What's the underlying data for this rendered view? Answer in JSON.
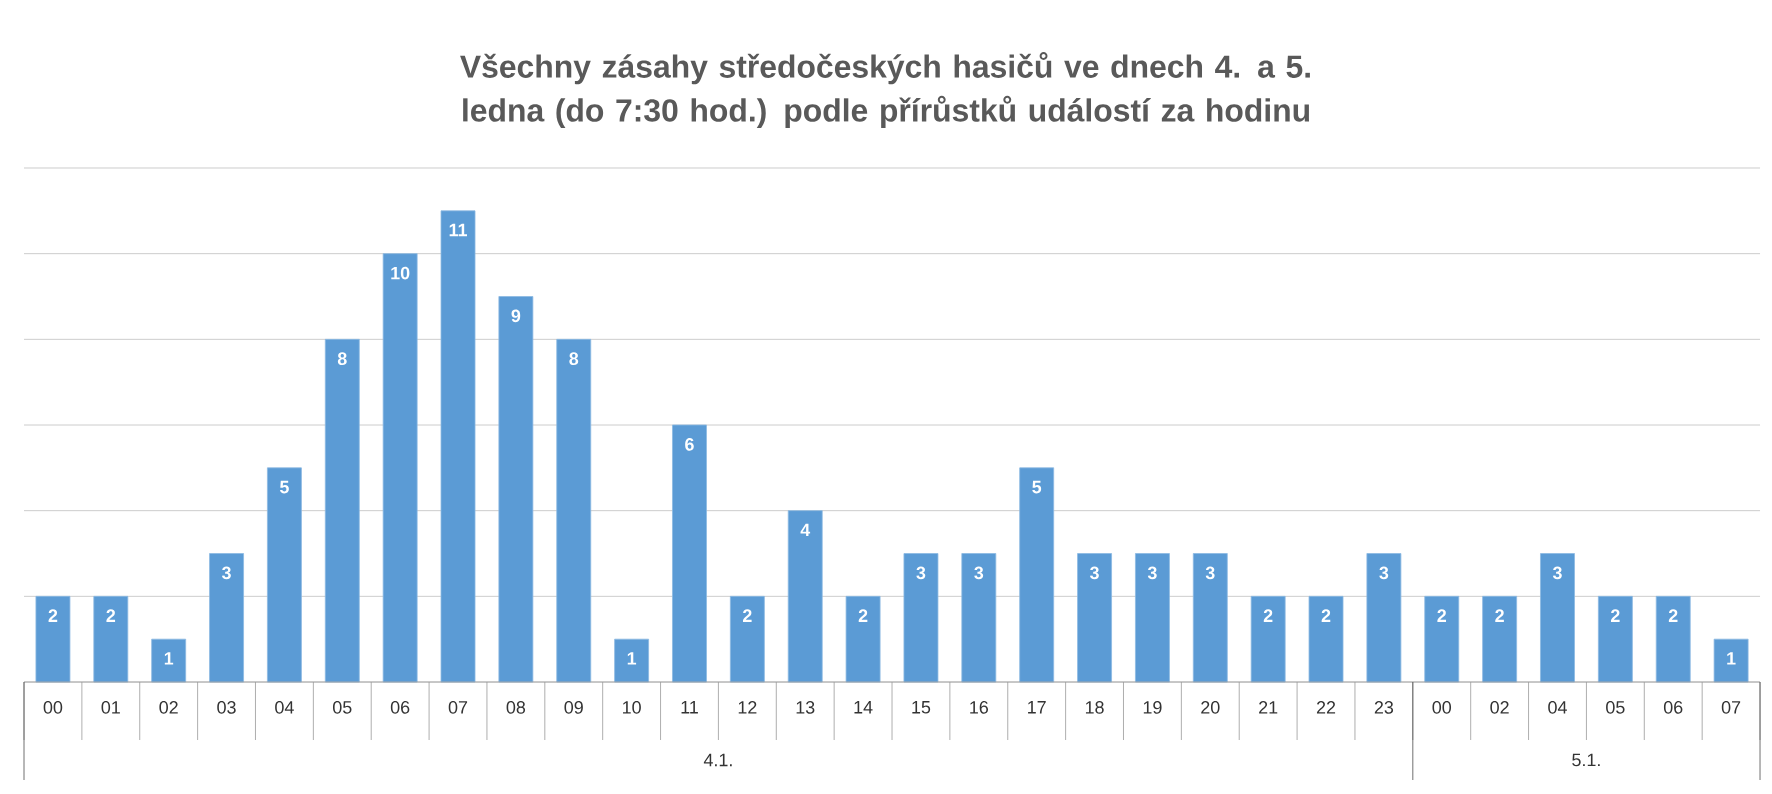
{
  "chart_data": {
    "type": "bar",
    "title": "Všechny zásahy středočeských hasičů ve dnech 4. a 5. ledna (do 7:30 hod.) podle přírůstků událostí za hodinu",
    "categories": [
      "00",
      "01",
      "02",
      "03",
      "04",
      "05",
      "06",
      "07",
      "08",
      "09",
      "10",
      "11",
      "12",
      "13",
      "14",
      "15",
      "16",
      "17",
      "18",
      "19",
      "20",
      "21",
      "22",
      "23",
      "00",
      "02",
      "04",
      "05",
      "06",
      "07"
    ],
    "values": [
      2,
      2,
      1,
      3,
      5,
      8,
      10,
      11,
      9,
      8,
      1,
      6,
      2,
      4,
      2,
      3,
      3,
      5,
      3,
      3,
      3,
      2,
      2,
      3,
      2,
      2,
      3,
      2,
      2,
      1
    ],
    "color": "#5b9bd5",
    "ylim": [
      0,
      12
    ],
    "yticks": [
      {
        "value": 0,
        "label": null
      },
      {
        "value": 2,
        "label": null
      },
      {
        "value": 4,
        "label": null
      },
      {
        "value": 6,
        "label": null
      },
      {
        "value": 8,
        "label": null
      },
      {
        "value": 10,
        "label": null
      },
      {
        "value": 12,
        "label": null
      }
    ],
    "tick_labels": "x",
    "grid": "y",
    "data_labels": true,
    "annotations": [
      "4.1.",
      "5.1."
    ]
  }
}
